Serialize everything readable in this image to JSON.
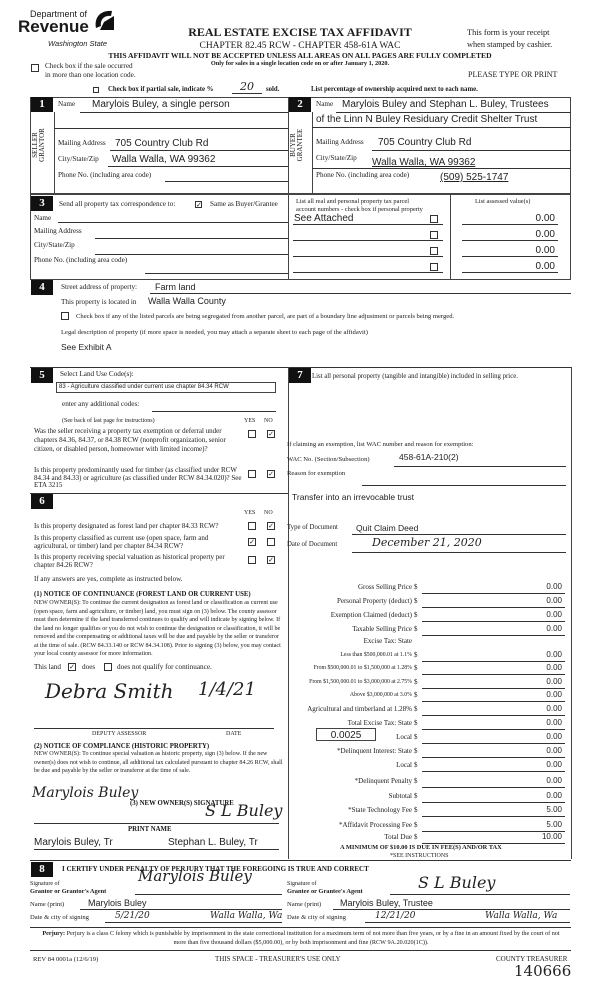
{
  "header": {
    "logo_top": "Department of",
    "logo_main": "Revenue",
    "logo_sub": "Washington State",
    "title": "REAL ESTATE EXCISE TAX AFFIDAVIT",
    "subtitle": "CHAPTER 82.45 RCW - CHAPTER 458-61A WAC",
    "warning": "THIS AFFIDAVIT WILL NOT BE ACCEPTED UNLESS ALL AREAS ON ALL PAGES ARE FULLY COMPLETED",
    "only_for": "Only for sales in a single location code on or after January 1, 2020.",
    "receipt_1": "This form is your receipt",
    "receipt_2": "when stamped by cashier.",
    "multi_loc_1": "Check box if the sale occurred",
    "multi_loc_2": "in more than one location code.",
    "please": "PLEASE TYPE OR PRINT",
    "partial_label": "Check box if partial sale, indicate %",
    "partial_value": "20",
    "partial_sold": "sold.",
    "ownership_note": "List percentage of ownership acquired next to each name."
  },
  "s1": {
    "num": "1",
    "side_1": "SELLER",
    "side_2": "GRANTOR",
    "name_label": "Name",
    "name": "Marylois Buley, a single person",
    "mail_label": "Mailing Address",
    "mail": "705 Country Club Rd",
    "city_label": "City/State/Zip",
    "city": "Walla Walla, WA 99362",
    "phone_label": "Phone No. (including area code)",
    "phone": ""
  },
  "s2": {
    "num": "2",
    "side_1": "BUYER",
    "side_2": "GRANTEE",
    "name_label": "Name",
    "name_1": "Marylois Buley and Stephan L. Buley, Trustees",
    "name_2": "of the Linn N Buley Residuary Credit Shelter Trust",
    "mail_label": "Mailing Address",
    "mail": "705 Country Club Rd",
    "city_label": "City/State/Zip",
    "city": "Walla Walla, WA 99362",
    "phone_label": "Phone No. (including area code)",
    "phone": "(509) 525-1747"
  },
  "s3": {
    "num": "3",
    "send_label": "Send all property tax correspondence to:",
    "same_label": "Same as Buyer/Grantee",
    "same_checked": true,
    "labels": [
      "Name",
      "Mailing Address",
      "City/State/Zip",
      "Phone No. (including area code)"
    ],
    "parcel_header_1": "List all real and personal property tax parcel",
    "parcel_header_2": "account numbers - check box if personal property",
    "assessed_header": "List assessed value(s)",
    "parcels": [
      {
        "account": "See Attached",
        "value": "0.00"
      },
      {
        "account": "",
        "value": "0.00"
      },
      {
        "account": "",
        "value": "0.00"
      },
      {
        "account": "",
        "value": "0.00"
      }
    ]
  },
  "s4": {
    "num": "4",
    "street_label": "Street address of property:",
    "street": "Farm land",
    "located_label": "This property is located in",
    "located": "Walla Walla County",
    "segregated": "Check box if any of the listed parcels are being segregated from another parcel, are part of a boundary line adjustment or parcels being merged.",
    "legal_label": "Legal description of property (if more space is needed, you may attach a separate sheet to each page of the affidavit)",
    "legal": "See Exhibit A"
  },
  "s5": {
    "num": "5",
    "label": "Select Land Use Code(s):",
    "code": "83 - Agriculture classified under current use chapter 84.34 RCW",
    "additional": "enter any additional codes:",
    "see_back": "(See back of last page for instructions)",
    "yes": "YES",
    "no": "NO",
    "q1": "Was the seller receiving a property tax exemption or deferral under chapters 84.36, 84.37, or 84.38 RCW (nonprofit organization, senior citizen, or disabled person, homeowner with limited income)?",
    "q1_answer": "NO",
    "q2": "Is this property predominantly used for timber (as classified under RCW 84.34 and 84.33) or agriculture (as classified under RCW 84.34.020)? See ETA 3215",
    "q2_answer": "NO"
  },
  "s6": {
    "num": "6",
    "yes": "YES",
    "no": "NO",
    "q1": "Is this property designated as forest land per chapter 84.33 RCW?",
    "q1_answer": "NO",
    "q2": "Is this property classified as current use (open space, farm and agricultural, or timber) land per chapter 84.34 RCW?",
    "q2_answer": "YES",
    "q3": "Is this property receiving special valuation as historical property per chapter 84.26 RCW?",
    "q3_answer": "NO",
    "if_yes": "If any answers are yes, complete as instructed below.",
    "n1_title": "(1) NOTICE OF CONTINUANCE (FOREST LAND OR CURRENT USE)",
    "n1_text": "NEW OWNER(S): To continue the current designation as forest land or classification as current use (open space, farm and agriculture, or timber) land, you must sign on (3) below. The county assessor must then determine if the land transferred continues to qualify and will indicate by signing below. If the land no longer qualifies or you do not wish to continue the designation or classification, it will be removed and the compensating or additional taxes will be due and payable by the seller or transferor at the time of sale. (RCW 84.33.140 or RCW 84.34.108). Prior to signing (3) below, you may contact your local county assessor for more information.",
    "this_land": "This land",
    "does": "does",
    "does_not": "does not qualify for continuance.",
    "qualifies": true,
    "assessor_signature": "Debra Smith",
    "assessor_date": "1/4/21",
    "deputy_label": "DEPUTY ASSESSOR",
    "date_label": "DATE",
    "n2_title": "(2) NOTICE OF COMPLIANCE (HISTORIC PROPERTY)",
    "n2_text": "NEW OWNER(S): To continue special valuation as historic property, sign (3) below. If the new owner(s) does not wish to continue, all additional tax calculated pursuant to chapter 84.26 RCW, shall be due and payable by the seller or transferor at the time of sale.",
    "owner_sig_label": "(3) NEW OWNER(S) SIGNATURE",
    "owner_sig_1": "Marylois Buley",
    "owner_sig_2": "S L Buley",
    "print_label": "PRINT NAME",
    "print_1": "Marylois Buley, Tr",
    "print_2": "Stephan L. Buley, Tr"
  },
  "s7": {
    "num": "7",
    "label": "List all personal property (tangible and intangible) included in selling price.",
    "exempt_label": "If claiming an exemption, list WAC number and reason for exemption:",
    "wac_label": "WAC No. (Section/Subsection)",
    "wac": "458-61A-210(2)",
    "reason_label": "Reason for exemption",
    "reason": "Transfer into an irrevocable trust",
    "type_label": "Type of Document",
    "type": "Quit Claim Deed",
    "date_label": "Date of Document",
    "date": "December 21, 2020",
    "tax_rows": [
      {
        "label": "Gross Selling Price",
        "value": "0.00"
      },
      {
        "label": "Personal Property (deduct)",
        "value": "0.00"
      },
      {
        "label": "Exemption Claimed (deduct)",
        "value": "0.00"
      },
      {
        "label": "Taxable Selling Price",
        "value": "0.00"
      },
      {
        "label": "Excise Tax: State",
        "value": null
      },
      {
        "label": "Less than $500,000.01 at 1.1%",
        "value": "0.00"
      },
      {
        "label": "From $500,000.01 to $1,500,000 at 1.28%",
        "value": "0.00"
      },
      {
        "label": "From $1,500,000.01 to $3,000,000 at 2.75%",
        "value": "0.00"
      },
      {
        "label": "Above $3,000,000 at 3.0%",
        "value": "0.00"
      },
      {
        "label": "Agricultural and timberland at 1.28%",
        "value": "0.00"
      },
      {
        "label": "Total Excise Tax: State",
        "value": "0.00"
      },
      {
        "label": "Local",
        "value": "0.00"
      },
      {
        "label": "*Delinquent Interest: State",
        "value": "0.00"
      },
      {
        "label": "Local",
        "value": "0.00"
      },
      {
        "label": "*Delinquent Penalty",
        "value": "0.00"
      },
      {
        "label": "Subtotal",
        "value": "0.00"
      },
      {
        "label": "*State Technology Fee",
        "value": "5.00"
      },
      {
        "label": "*Affidavit Processing Fee",
        "value": "5.00"
      },
      {
        "label": "Total Due",
        "value": "10.00"
      }
    ],
    "local_rate": "0.0025",
    "minimum": "A MINIMUM OF $10.00 IS DUE IN FEE(S) AND/OR TAX",
    "see_instructions": "*SEE INSTRUCTIONS"
  },
  "s8": {
    "num": "8",
    "certify": "I CERTIFY UNDER PENALTY OF PERJURY THAT THE FOREGOING IS TRUE AND CORRECT",
    "grantor_sig_1": "Signature of",
    "grantor_sig_2": "Grantor or Grantor's Agent",
    "grantor_signature": "Marylois Buley",
    "grantee_sig_1": "Signature of",
    "grantee_sig_2": "Grantee or Grantee's Agent",
    "grantee_signature": "S L Buley",
    "name_label": "Name (print)",
    "grantor_name": "Marylois Buley",
    "grantee_name": "Marylois Buley, Trustee",
    "date_label": "Date & city of signing",
    "grantor_date": "5/21/20",
    "grantor_city": "Walla Walla, Wa",
    "grantee_date": "12/21/20",
    "grantee_city": "Walla Walla, Wa",
    "perjury_label": "Perjury:",
    "perjury": "Perjury is a class C felony which is punishable by imprisonment in the state correctional institution for a maximum term of not more than five years, or by a fine in an amount fixed by the court of not more than five thousand dollars ($5,000.00), or by both imprisonment and fine (RCW 9A.20.020(1C))."
  },
  "footer": {
    "rev": "REV 84 0001a (12/6/19)",
    "treasurer_space": "THIS SPACE - TREASURER'S USE ONLY",
    "county_treasurer": "COUNTY TREASURER",
    "receipt_no": "140666"
  }
}
